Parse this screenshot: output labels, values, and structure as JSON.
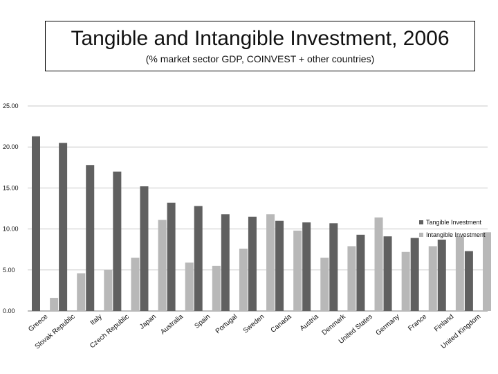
{
  "chart_data": {
    "type": "bar",
    "title": "Tangible and Intangible Investment, 2006",
    "subtitle": "(% market sector GDP, COINVEST + other countries)",
    "categories": [
      "Greece",
      "Slovak Republic",
      "Italy",
      "Czech Republic",
      "Japan",
      "Australia",
      "Spain",
      "Portugal",
      "Sweden",
      "Canada",
      "Austria",
      "Denmark",
      "United States",
      "Germany",
      "France",
      "Finland",
      "United Kingdom"
    ],
    "series": [
      {
        "name": "Tangible Investment",
        "color": "#606060",
        "values": [
          21.3,
          20.5,
          17.8,
          17.0,
          15.2,
          13.2,
          12.8,
          11.8,
          11.5,
          11.0,
          10.8,
          10.7,
          9.3,
          9.1,
          8.9,
          8.7,
          7.3
        ]
      },
      {
        "name": "Intangible Investment",
        "color": "#b8b8b8",
        "values": [
          1.6,
          4.6,
          5.0,
          6.5,
          11.1,
          5.9,
          5.5,
          7.6,
          11.8,
          9.8,
          6.5,
          7.9,
          11.4,
          7.2,
          7.9,
          9.1,
          9.6
        ]
      }
    ],
    "ylim": [
      0,
      25
    ],
    "yticks": [
      "0.00",
      "5.00",
      "10.00",
      "15.00",
      "20.00",
      "25.00"
    ],
    "grid": true,
    "legend": "right"
  }
}
